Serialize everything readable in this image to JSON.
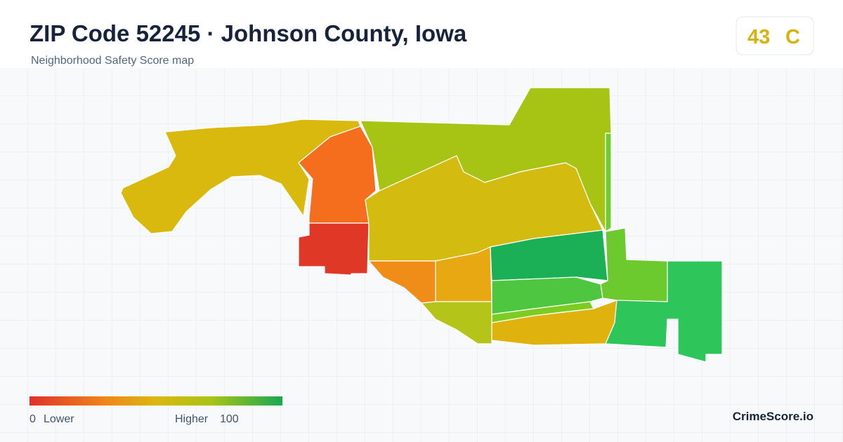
{
  "header": {
    "title": "ZIP Code 52245 · Johnson County, Iowa",
    "subtitle": "Neighborhood Safety Score map"
  },
  "badge": {
    "score": 43,
    "grade": "C"
  },
  "legend": {
    "min": 0,
    "min_label": "Lower",
    "max_label": "Higher",
    "max": 100
  },
  "brand": "CrimeScore.io"
}
